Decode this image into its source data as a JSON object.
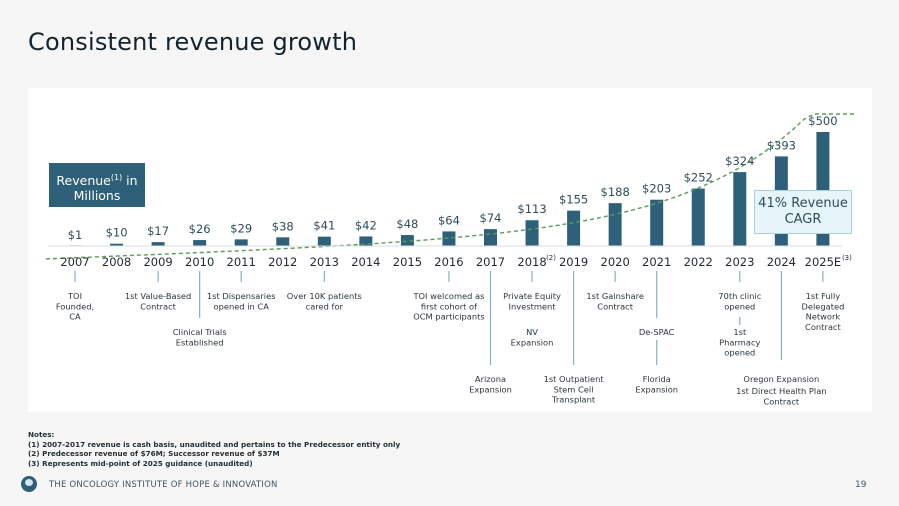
{
  "slide": {
    "title": "Consistent revenue growth",
    "page_number": "19",
    "footer_company": "THE ONCOLOGY INSTITUTE OF HOPE & INNOVATION",
    "logo_icon": "tree-logo-icon"
  },
  "legend_box": {
    "label_main": "Revenue",
    "label_sup": "(1)",
    "label_rest": " in Millions"
  },
  "cagr_box": {
    "line1": "41% Revenue",
    "line2": "CAGR"
  },
  "notes": {
    "heading": "Notes:",
    "items": [
      "(1) 2007-2017 revenue is cash basis, unaudited and pertains to the Predecessor entity only",
      "(2) Predecessor revenue of $76M; Successor revenue of $37M",
      "(3) Represents mid-point of 2025 guidance (unaudited)"
    ]
  },
  "colors": {
    "bar": "#2f6079",
    "trend": "#5a9a5a",
    "connector": "#7fb3c9",
    "label": "#2f4b5a"
  },
  "chart_data": {
    "type": "bar",
    "title": "Consistent revenue growth",
    "ylabel": "Revenue ($ in Millions)",
    "xlabel": "",
    "ylim": [
      0,
      500
    ],
    "grid": false,
    "categories": [
      "2007",
      "2008",
      "2009",
      "2010",
      "2011",
      "2012",
      "2013",
      "2014",
      "2015",
      "2016",
      "2017",
      "2018",
      "2019",
      "2020",
      "2021",
      "2022",
      "2023",
      "2024",
      "2025E"
    ],
    "category_superscripts": {
      "2018": "(2)",
      "2025E": "(3)"
    },
    "values": [
      1,
      10,
      17,
      26,
      29,
      38,
      41,
      42,
      48,
      64,
      74,
      113,
      155,
      188,
      203,
      252,
      324,
      393,
      500
    ],
    "data_labels": [
      "$1",
      "$10",
      "$17",
      "$26",
      "$29",
      "$38",
      "$41",
      "$42",
      "$48",
      "$64",
      "$74",
      "$113",
      "$155",
      "$188",
      "$203",
      "$252",
      "$324",
      "$393",
      "$500"
    ],
    "trendline": {
      "type": "exponential",
      "style": "dashed",
      "label": "41% Revenue CAGR"
    },
    "milestones": [
      {
        "year": "2007",
        "tier": 1,
        "text": [
          "TOI",
          "Founded,",
          "CA"
        ]
      },
      {
        "year": "2009",
        "tier": 1,
        "text": [
          "1st Value-Based",
          "Contract"
        ]
      },
      {
        "year": "2010",
        "tier": 2,
        "text": [
          "Clinical Trials",
          "Established"
        ]
      },
      {
        "year": "2011",
        "tier": 1,
        "text": [
          "1st Dispensaries",
          "opened in CA"
        ]
      },
      {
        "year": "2013",
        "tier": 1,
        "text": [
          "Over 10K patients",
          "cared for"
        ]
      },
      {
        "year": "2016",
        "tier": 1,
        "text": [
          "TOI welcomed as",
          "first cohort of",
          "OCM participants"
        ]
      },
      {
        "year": "2017",
        "tier": 3,
        "text": [
          "Arizona",
          "Expansion"
        ]
      },
      {
        "year": "2018",
        "tier": 1,
        "text": [
          "Private Equity",
          "Investment"
        ]
      },
      {
        "year": "2018",
        "tier": 2,
        "text": [
          "NV",
          "Expansion"
        ]
      },
      {
        "year": "2019",
        "tier": 3,
        "text": [
          "1st Outpatient",
          "Stem Cell",
          "Transplant"
        ]
      },
      {
        "year": "2020",
        "tier": 1,
        "text": [
          "1st Gainshare",
          "Contract"
        ]
      },
      {
        "year": "2021",
        "tier": 2,
        "text": [
          "De-SPAC"
        ]
      },
      {
        "year": "2021",
        "tier": 3,
        "text": [
          "Florida",
          "Expansion"
        ]
      },
      {
        "year": "2023",
        "tier": 1,
        "text": [
          "70th clinic",
          "opened"
        ]
      },
      {
        "year": "2023",
        "tier": 2,
        "text": [
          "1st",
          "Pharmacy",
          "opened"
        ]
      },
      {
        "year": "2024",
        "tier": 3,
        "text": [
          "Oregon Expansion"
        ]
      },
      {
        "year": "2024",
        "tier": 4,
        "text": [
          "1st Direct Health Plan",
          "Contract"
        ]
      },
      {
        "year": "2025E",
        "tier": 1,
        "text": [
          "1st Fully",
          "Delegated",
          "Network",
          "Contract"
        ]
      }
    ]
  }
}
